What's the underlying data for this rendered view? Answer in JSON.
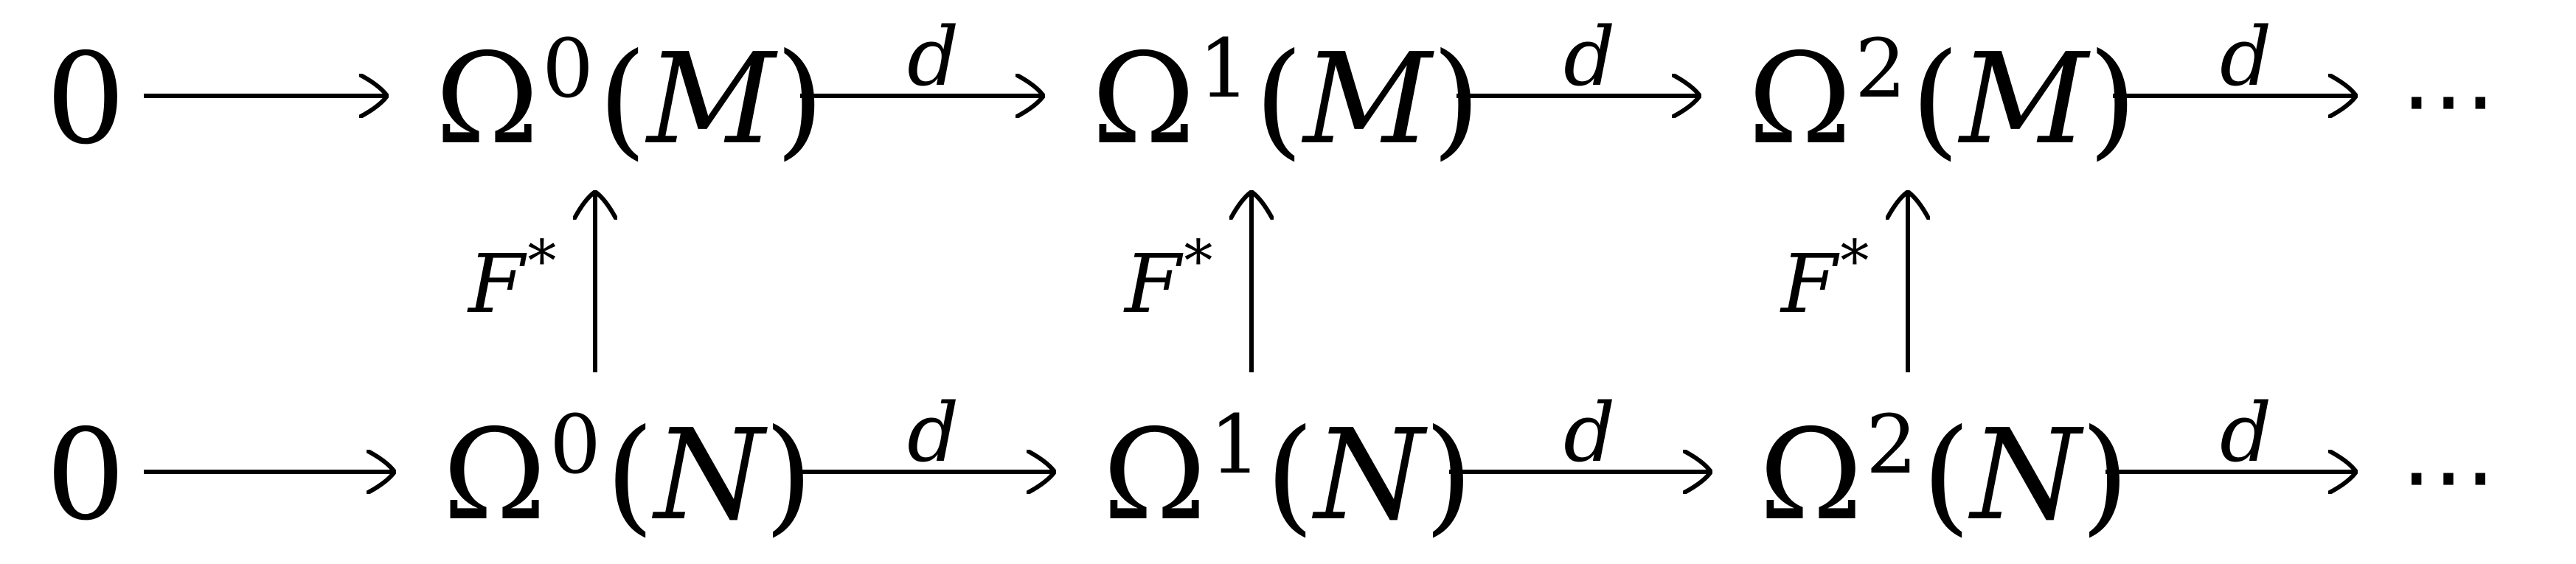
{
  "diagram": {
    "top_row": {
      "start": "0",
      "nodes": [
        {
          "base": "Ω",
          "degree": "0",
          "arg": "M"
        },
        {
          "base": "Ω",
          "degree": "1",
          "arg": "M"
        },
        {
          "base": "Ω",
          "degree": "2",
          "arg": "M"
        }
      ],
      "arrow_labels": [
        "",
        "d",
        "d",
        "d"
      ],
      "end": "⋯"
    },
    "bottom_row": {
      "start": "0",
      "nodes": [
        {
          "base": "Ω",
          "degree": "0",
          "arg": "N"
        },
        {
          "base": "Ω",
          "degree": "1",
          "arg": "N"
        },
        {
          "base": "Ω",
          "degree": "2",
          "arg": "N"
        }
      ],
      "arrow_labels": [
        "",
        "d",
        "d",
        "d"
      ],
      "end": "⋯"
    },
    "vertical_labels": [
      {
        "name": "F",
        "sup": "*"
      },
      {
        "name": "F",
        "sup": "*"
      },
      {
        "name": "F",
        "sup": "*"
      }
    ]
  }
}
